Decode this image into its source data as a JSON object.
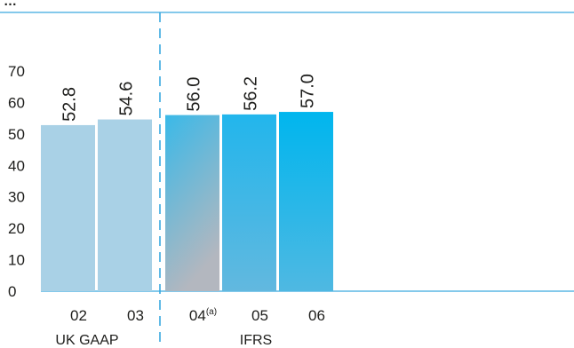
{
  "chart_data": {
    "type": "bar",
    "title": "…",
    "categories": [
      "02",
      "03",
      "04",
      "05",
      "06"
    ],
    "category_superscripts": [
      "",
      "",
      "(a)",
      "",
      ""
    ],
    "values": [
      52.8,
      54.6,
      56.0,
      56.2,
      57.0
    ],
    "value_labels": [
      "52.8",
      "54.6",
      "56.0",
      "56.2",
      "57.0"
    ],
    "ylim": [
      0,
      70
    ],
    "yticks": [
      0,
      10,
      20,
      30,
      40,
      50,
      60,
      70
    ],
    "groups": [
      {
        "label": "UK GAAP",
        "categories": [
          "02",
          "03"
        ]
      },
      {
        "label": "IFRS",
        "categories": [
          "04",
          "05",
          "06"
        ]
      }
    ],
    "xlabel": "",
    "ylabel": "",
    "grid": false,
    "colors": {
      "uk_gaap_bar": "#a9d1e6",
      "ifrs_bar_top": "#00b6ee",
      "ifrs_bar_bottom_left": "#b1b7c1",
      "ifrs_bar_bottom_right": "#5bb9e3",
      "rule": "#3aa9df",
      "divider": "#3aa9df"
    }
  }
}
